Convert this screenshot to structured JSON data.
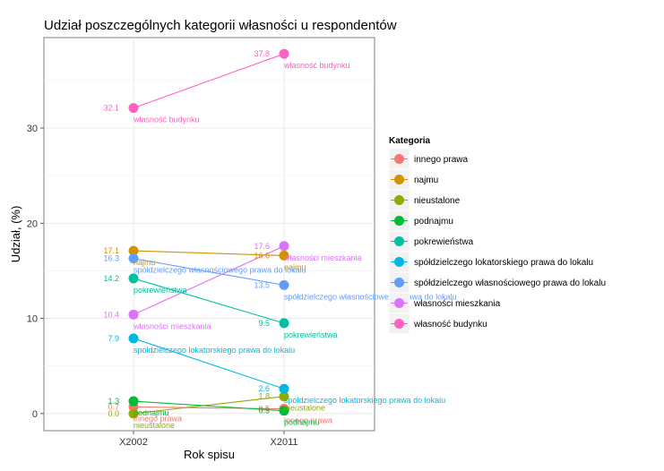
{
  "chart_data": {
    "type": "line",
    "title": "Udział poszczególnych kategorii własności u respondentów",
    "xlabel": "Rok spisu",
    "ylabel": "Udział, (%)",
    "categories": [
      "X2002",
      "X2011"
    ],
    "ylim": [
      -1.8,
      39.5
    ],
    "yticks": [
      0,
      10,
      20,
      30
    ],
    "grid": true,
    "legend": {
      "title": "Kategoria",
      "position": "right"
    },
    "series": [
      {
        "name": "innego prawa",
        "color": "#F8766D",
        "values": [
          0.7,
          0.5
        ],
        "value_labels": [
          "0.7",
          "0.5"
        ]
      },
      {
        "name": "najmu",
        "color": "#D39200",
        "values": [
          17.1,
          16.6
        ],
        "value_labels": [
          "17.1",
          "16.6"
        ]
      },
      {
        "name": "nieustalone",
        "color": "#93AA00",
        "values": [
          0.0,
          1.8
        ],
        "value_labels": [
          "0.0",
          "1.8"
        ]
      },
      {
        "name": "podnajmu",
        "color": "#00BA38",
        "values": [
          1.3,
          0.3
        ],
        "value_labels": [
          "1.3",
          "0.3"
        ]
      },
      {
        "name": "pokrewieństwa",
        "color": "#00C19F",
        "values": [
          14.2,
          9.5
        ],
        "value_labels": [
          "14.2",
          "9.5"
        ]
      },
      {
        "name": "spółdzielczego lokatorskiego prawa do lokalu",
        "color": "#00B9E3",
        "values": [
          7.9,
          2.6
        ],
        "value_labels": [
          "7.9",
          "2.6"
        ]
      },
      {
        "name": "spółdzielczego własnościowego prawa do lokalu",
        "color": "#619CFF",
        "values": [
          16.3,
          13.5
        ],
        "value_labels": [
          "16.3",
          "13.5"
        ]
      },
      {
        "name": "własności mieszkania",
        "color": "#DB72FB",
        "values": [
          10.4,
          17.6
        ],
        "value_labels": [
          "10.4",
          "17.6"
        ]
      },
      {
        "name": "własność budynku",
        "color": "#FF61C3",
        "values": [
          32.1,
          37.8
        ],
        "value_labels": [
          "32.1",
          "37.8"
        ]
      }
    ]
  }
}
